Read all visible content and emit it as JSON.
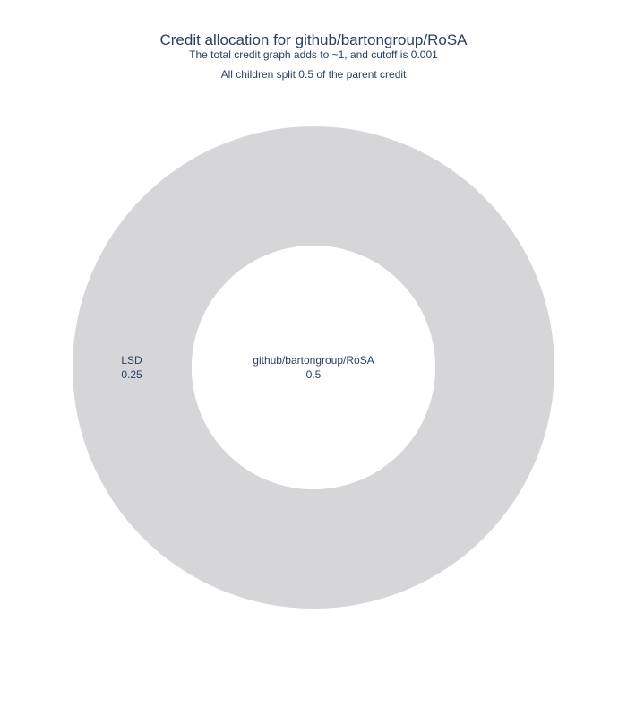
{
  "chart_data": {
    "type": "sunburst",
    "title": "Credit allocation for github/bartongroup/RoSA",
    "subtitle_lines": [
      "The total credit graph adds to ~1, and cutoff is 0.001",
      "All children split 0.5 of the parent credit"
    ],
    "root": {
      "label": "github/bartongroup/RoSA",
      "value": 0.5,
      "color": "#ffffff"
    },
    "children": [
      {
        "label": "LSD",
        "value": 0.25,
        "color": "#d6d6d8"
      }
    ]
  },
  "colors": {
    "text": "#2a3f5f",
    "ring": "#d6d6d8",
    "center": "#ffffff"
  }
}
